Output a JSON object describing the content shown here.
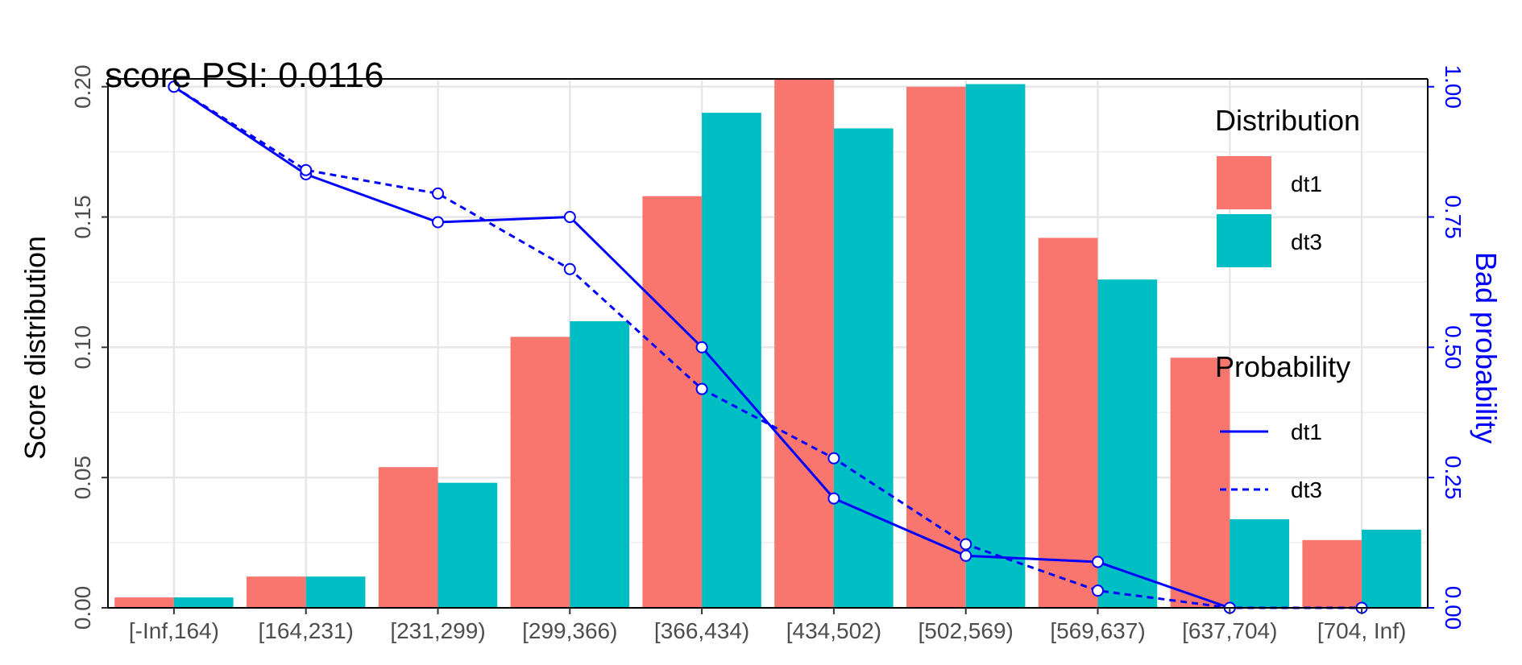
{
  "chart_data": {
    "type": "bar",
    "title": "score PSI: 0.0116",
    "xlabel": "",
    "ylabel": "Score distribution",
    "y2label": "Bad probability",
    "categories": [
      "[-Inf,164)",
      "[164,231)",
      "[231,299)",
      "[299,366)",
      "[366,434)",
      "[434,502)",
      "[502,569)",
      "[569,637)",
      "[637,704)",
      "[704, Inf)"
    ],
    "ylim": [
      0,
      0.2
    ],
    "yticks": [
      "0.00",
      "0.05",
      "0.10",
      "0.15",
      "0.20"
    ],
    "y2lim": [
      0,
      1
    ],
    "y2ticks": [
      "0.00",
      "0.25",
      "0.50",
      "0.75",
      "1.00"
    ],
    "grid": true,
    "series": [
      {
        "name": "dt1",
        "kind": "bar",
        "color": "#F8766D",
        "values": [
          0.004,
          0.012,
          0.054,
          0.104,
          0.158,
          0.203,
          0.2,
          0.142,
          0.096,
          0.026
        ]
      },
      {
        "name": "dt3",
        "kind": "bar",
        "color": "#00BFC4",
        "values": [
          0.004,
          0.012,
          0.048,
          0.11,
          0.19,
          0.184,
          0.201,
          0.126,
          0.034,
          0.03
        ]
      }
    ],
    "probability_series": [
      {
        "name": "dt1",
        "line": "solid",
        "color": "#0000FF",
        "values": [
          1.0,
          0.832,
          0.74,
          0.75,
          0.5,
          0.21,
          0.1,
          0.088,
          0.0,
          null
        ]
      },
      {
        "name": "dt3",
        "line": "dashed",
        "color": "#0000FF",
        "values": [
          1.0,
          0.84,
          0.795,
          0.65,
          0.42,
          0.287,
          0.122,
          0.033,
          0.0,
          0.0
        ]
      }
    ],
    "legend": {
      "placement": "right",
      "distribution_title": "Distribution",
      "probability_title": "Probability",
      "distribution_items": [
        {
          "label": "dt1",
          "color": "#F8766D"
        },
        {
          "label": "dt3",
          "color": "#00BFC4"
        }
      ],
      "probability_items": [
        {
          "label": "dt1",
          "line": "solid"
        },
        {
          "label": "dt3",
          "line": "dashed"
        }
      ]
    }
  }
}
